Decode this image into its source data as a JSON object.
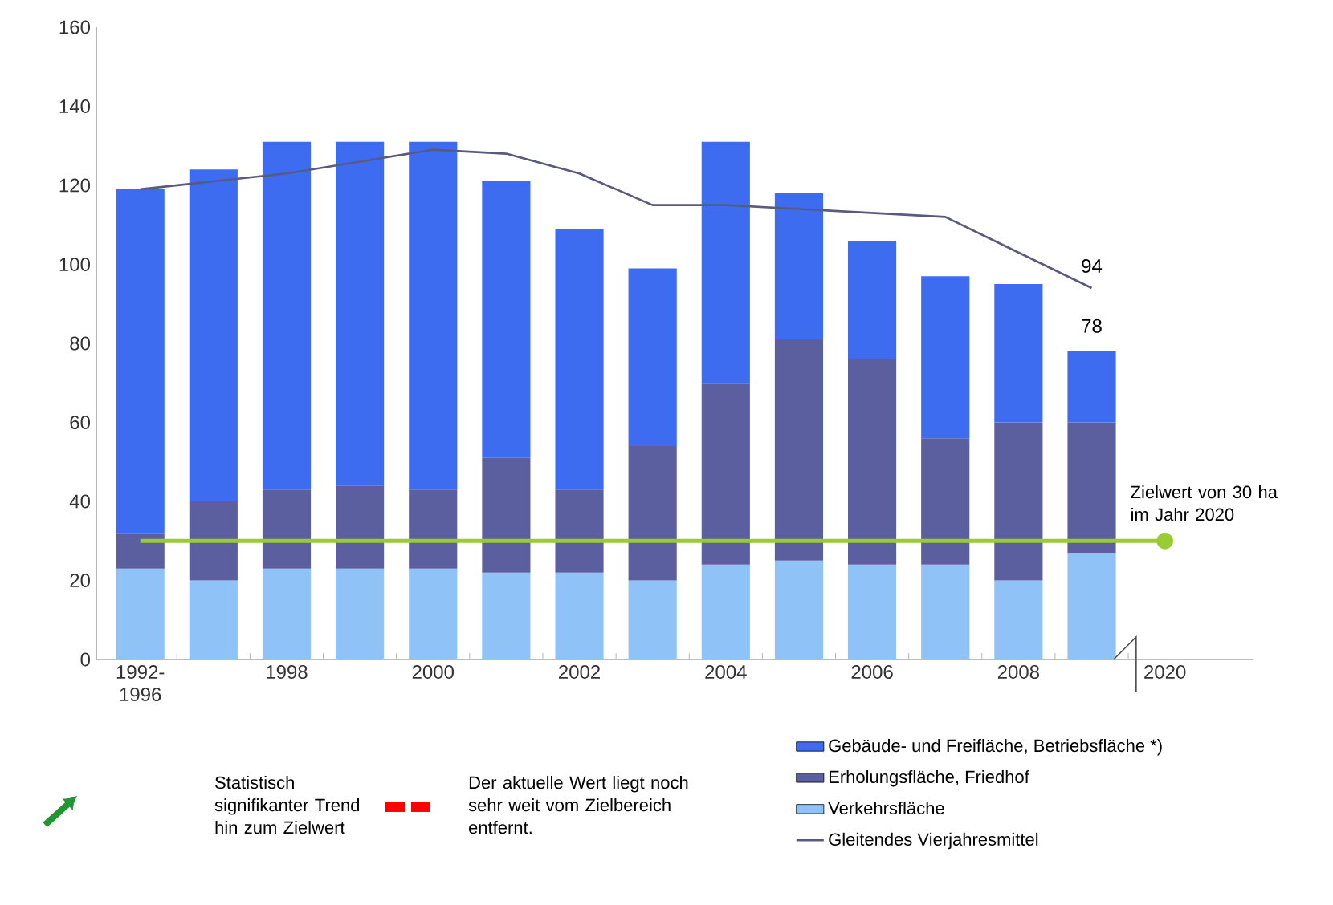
{
  "chart_data": {
    "type": "bar",
    "stacked": true,
    "categories": [
      "1992- 1996",
      null,
      "1998",
      null,
      "2000",
      null,
      "2002",
      null,
      "2004",
      null,
      "2006",
      null,
      "2008",
      null,
      "2020"
    ],
    "series": [
      {
        "name": "Verkehrsfläche",
        "color": "#8fc3f7",
        "values": [
          23,
          20,
          23,
          23,
          23,
          22,
          22,
          20,
          24,
          25,
          24,
          24,
          20,
          27,
          null
        ]
      },
      {
        "name": "Erholungsfläche, Friedhof",
        "color": "#5b5e9f",
        "values": [
          9,
          20,
          20,
          21,
          20,
          29,
          21,
          34,
          46,
          56,
          52,
          32,
          40,
          33,
          null
        ]
      },
      {
        "name": "Gebäude- und Freifläche, Betriebsfläche *)",
        "color": "#3d6cf0",
        "values": [
          87,
          84,
          88,
          87,
          88,
          70,
          66,
          45,
          61,
          37,
          30,
          41,
          35,
          18,
          null
        ]
      },
      {
        "name": "Gleitendes Vierjahresmittel",
        "type": "line",
        "color": "#5a5a80",
        "values": [
          119,
          121,
          123,
          126,
          129,
          128,
          123,
          115,
          115,
          114,
          113,
          112,
          103,
          94,
          null
        ],
        "value_labels": [
          null,
          null,
          null,
          null,
          null,
          null,
          null,
          null,
          null,
          null,
          null,
          null,
          null,
          "94",
          null
        ]
      },
      {
        "type": "scatter",
        "color": "#99cc33",
        "values": [
          null,
          null,
          null,
          null,
          null,
          null,
          null,
          null,
          null,
          null,
          null,
          null,
          null,
          null,
          30
        ]
      }
    ],
    "totals": [
      null,
      null,
      null,
      null,
      null,
      null,
      null,
      null,
      null,
      null,
      null,
      null,
      null,
      "78",
      null
    ],
    "ylim": [
      0,
      160
    ],
    "yticks": [
      0,
      20,
      40,
      60,
      80,
      100,
      120,
      140,
      160
    ],
    "ref_lines": [
      {
        "axis": "y",
        "value": 30,
        "label": "Zielwert von 30 ha im Jahr 2020",
        "color": "#99cc33"
      }
    ],
    "legend": "bottom",
    "annotations": [
      "Statistisch signifikanter Trend hin zum Zielwert",
      "Der aktuelle Wert liegt noch sehr weit vom Zielbereich entfernt."
    ]
  }
}
